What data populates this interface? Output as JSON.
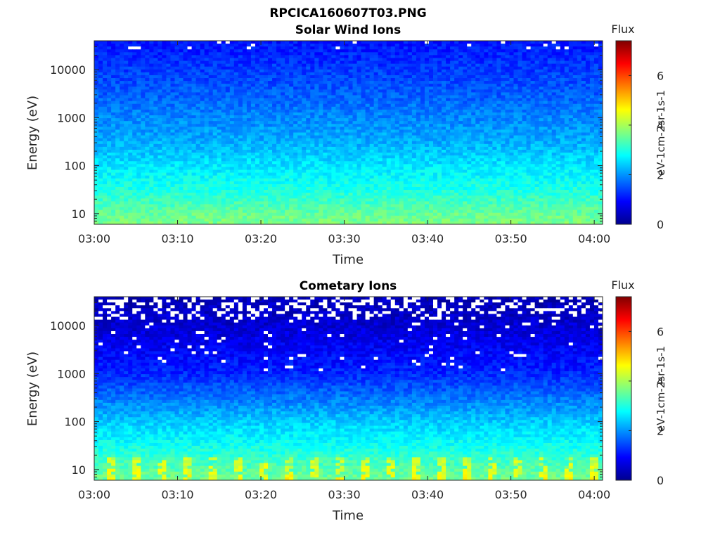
{
  "figure": {
    "title_line1": "RPCICA160607T03.PNG"
  },
  "colors": {
    "colormap": "jet",
    "missing_data": "#ffffff",
    "axis": "#262626"
  },
  "chart_data": [
    {
      "type": "heatmap",
      "title": "Solar Wind Ions",
      "xlabel": "Time",
      "ylabel": "Energy (eV)",
      "x_ticks": [
        "03:00",
        "03:10",
        "03:20",
        "03:30",
        "03:40",
        "03:50",
        "04:00"
      ],
      "x_range": [
        "03:00",
        "04:01"
      ],
      "y_scale": "log",
      "y_ticks": [
        "10",
        "100",
        "1000",
        "10000"
      ],
      "y_range": [
        6,
        40000
      ],
      "colorbar": {
        "title": "Flux",
        "label": "eV-1cm-2sr-1s-1",
        "ticks": [
          "0",
          "2",
          "4",
          "6"
        ],
        "range": [
          0,
          7.4
        ]
      },
      "flux_profile": {
        "energy_eV": [
          6,
          10,
          30,
          100,
          300,
          1000,
          3000,
          10000,
          40000
        ],
        "flux": [
          3.7,
          3.5,
          3.0,
          2.6,
          2.2,
          1.9,
          1.6,
          1.35,
          1.05
        ]
      },
      "data_gaps": "sparse, top energy bins"
    },
    {
      "type": "heatmap",
      "title": "Cometary Ions",
      "xlabel": "Time",
      "ylabel": "Energy (eV)",
      "x_ticks": [
        "03:00",
        "03:10",
        "03:20",
        "03:30",
        "03:40",
        "03:50",
        "04:00"
      ],
      "x_range": [
        "03:00",
        "04:01"
      ],
      "y_scale": "log",
      "y_ticks": [
        "10",
        "100",
        "1000",
        "10000"
      ],
      "y_range": [
        6,
        40000
      ],
      "colorbar": {
        "title": "Flux",
        "label": "eV-1cm-2sr-1s-1",
        "ticks": [
          "0",
          "2",
          "4",
          "6"
        ],
        "range": [
          0,
          7.4
        ]
      },
      "flux_profile": {
        "energy_eV": [
          6,
          10,
          30,
          100,
          300,
          1000,
          3000,
          10000,
          40000
        ],
        "flux": [
          3.6,
          3.4,
          2.9,
          2.4,
          1.8,
          1.2,
          0.9,
          0.6,
          0.4
        ]
      },
      "data_gaps": "frequent above 10000 eV, scattered 300-10000 eV",
      "low_energy_bursts": "periodic high flux (about 4-4.5) in lowest bins"
    }
  ]
}
